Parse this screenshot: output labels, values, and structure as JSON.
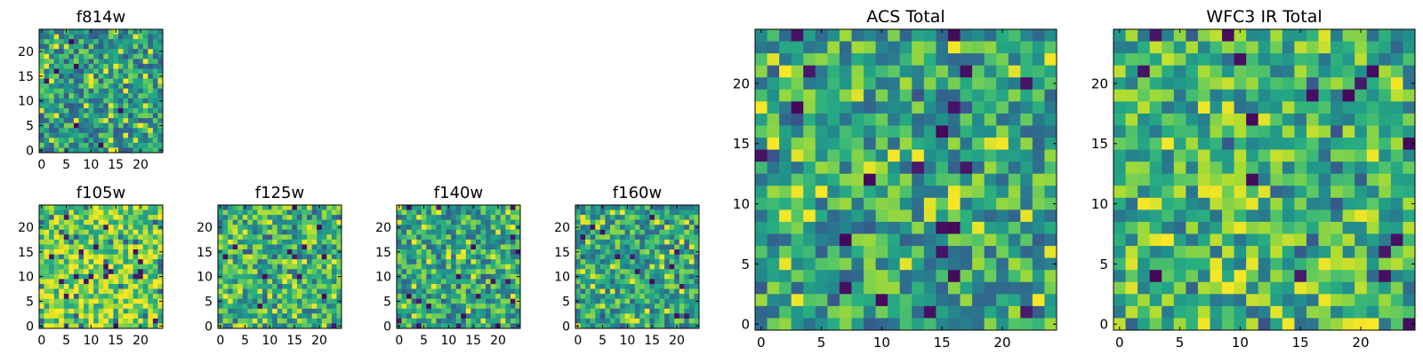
{
  "chart_data": [
    {
      "id": "f814w",
      "type": "heatmap",
      "title": "f814w",
      "grid_size": 25,
      "colormap": "viridis",
      "seed": 11,
      "low_bias": 0.55,
      "xlim": [
        -0.5,
        24.5
      ],
      "ylim": [
        -0.5,
        24.5
      ],
      "x_ticks": [
        0,
        5,
        10,
        15,
        20
      ],
      "y_ticks": [
        0,
        5,
        10,
        15,
        20
      ],
      "xlabel": "",
      "ylabel": ""
    },
    {
      "id": "f105w",
      "type": "heatmap",
      "title": "f105w",
      "grid_size": 25,
      "colormap": "viridis",
      "seed": 23,
      "low_bias": 0.8,
      "xlim": [
        -0.5,
        24.5
      ],
      "ylim": [
        -0.5,
        24.5
      ],
      "x_ticks": [
        0,
        5,
        10,
        15,
        20
      ],
      "y_ticks": [
        0,
        5,
        10,
        15,
        20
      ],
      "xlabel": "",
      "ylabel": ""
    },
    {
      "id": "f125w",
      "type": "heatmap",
      "title": "f125w",
      "grid_size": 25,
      "colormap": "viridis",
      "seed": 37,
      "low_bias": 0.65,
      "xlim": [
        -0.5,
        24.5
      ],
      "ylim": [
        -0.5,
        24.5
      ],
      "x_ticks": [
        0,
        5,
        10,
        15,
        20
      ],
      "y_ticks": [
        0,
        5,
        10,
        15,
        20
      ],
      "xlabel": "",
      "ylabel": ""
    },
    {
      "id": "f140w",
      "type": "heatmap",
      "title": "f140w",
      "grid_size": 25,
      "colormap": "viridis",
      "seed": 41,
      "low_bias": 0.6,
      "xlim": [
        -0.5,
        24.5
      ],
      "ylim": [
        -0.5,
        24.5
      ],
      "x_ticks": [
        0,
        5,
        10,
        15,
        20
      ],
      "y_ticks": [
        0,
        5,
        10,
        15,
        20
      ],
      "xlabel": "",
      "ylabel": ""
    },
    {
      "id": "f160w",
      "type": "heatmap",
      "title": "f160w",
      "grid_size": 25,
      "colormap": "viridis",
      "seed": 53,
      "low_bias": 0.6,
      "xlim": [
        -0.5,
        24.5
      ],
      "ylim": [
        -0.5,
        24.5
      ],
      "x_ticks": [
        0,
        5,
        10,
        15,
        20
      ],
      "y_ticks": [
        0,
        5,
        10,
        15,
        20
      ],
      "xlabel": "",
      "ylabel": ""
    },
    {
      "id": "acs_total",
      "type": "heatmap",
      "title": "ACS Total",
      "grid_size": 25,
      "colormap": "viridis",
      "seed": 67,
      "low_bias": 0.6,
      "xlim": [
        -0.5,
        24.5
      ],
      "ylim": [
        -0.5,
        24.5
      ],
      "x_ticks": [
        0,
        5,
        10,
        15,
        20
      ],
      "y_ticks": [
        0,
        5,
        10,
        15,
        20
      ],
      "xlabel": "",
      "ylabel": ""
    },
    {
      "id": "wfc3_ir_total",
      "type": "heatmap",
      "title": "WFC3 IR Total",
      "grid_size": 25,
      "colormap": "viridis",
      "seed": 79,
      "low_bias": 0.65,
      "xlim": [
        -0.5,
        24.5
      ],
      "ylim": [
        -0.5,
        24.5
      ],
      "x_ticks": [
        0,
        5,
        10,
        15,
        20
      ],
      "y_ticks": [
        0,
        5,
        10,
        15,
        20
      ],
      "xlabel": "",
      "ylabel": ""
    }
  ]
}
